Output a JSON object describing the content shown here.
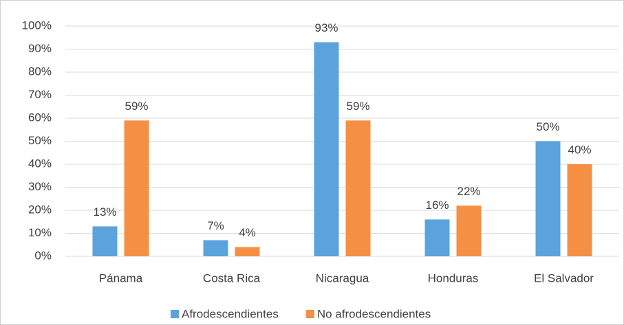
{
  "chart_data": {
    "type": "bar",
    "categories": [
      "Pánama",
      "Costa Rica",
      "Nicaragua",
      "Honduras",
      "El Salvador"
    ],
    "series": [
      {
        "name": "Afrodescendientes",
        "color": "#5ba3dc",
        "values": [
          13,
          7,
          93,
          16,
          50
        ],
        "value_labels": [
          "13%",
          "7%",
          "93%",
          "16%",
          "50%"
        ]
      },
      {
        "name": "No afrodescendientes",
        "color": "#f58f44",
        "values": [
          59,
          4,
          59,
          22,
          40
        ],
        "value_labels": [
          "59%",
          "4%",
          "59%",
          "22%",
          "40%"
        ]
      }
    ],
    "ylim": [
      0,
      100
    ],
    "yticks": [
      {
        "value": 0,
        "label": "0%"
      },
      {
        "value": 10,
        "label": "10%"
      },
      {
        "value": 20,
        "label": "20%"
      },
      {
        "value": 30,
        "label": "30%"
      },
      {
        "value": 40,
        "label": "40%"
      },
      {
        "value": 50,
        "label": "50%"
      },
      {
        "value": 60,
        "label": "60%"
      },
      {
        "value": 70,
        "label": "70%"
      },
      {
        "value": 80,
        "label": "80%"
      },
      {
        "value": 90,
        "label": "90%"
      },
      {
        "value": 100,
        "label": "100%"
      }
    ],
    "grid": true,
    "legend": "bottom"
  }
}
